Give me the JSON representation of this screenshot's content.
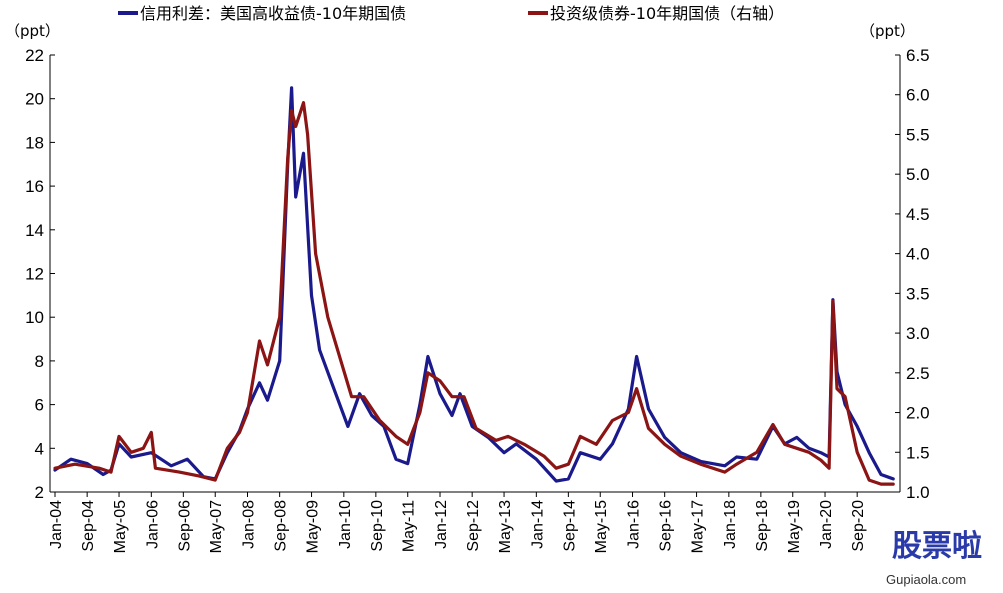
{
  "chart_data": {
    "type": "line",
    "legend_position": "top",
    "grid": false,
    "left_axis": {
      "unit": "（ppt）",
      "ylim": [
        2,
        22
      ],
      "ticks": [
        2,
        4,
        6,
        8,
        10,
        12,
        14,
        16,
        18,
        20,
        22
      ]
    },
    "right_axis": {
      "unit": "（ppt）",
      "ylim": [
        1.0,
        6.5
      ],
      "ticks": [
        "1.0",
        "1.5",
        "2.0",
        "2.5",
        "3.0",
        "3.5",
        "4.0",
        "4.5",
        "5.0",
        "5.5",
        "6.0",
        "6.5"
      ]
    },
    "x_ticks": [
      "Jan-04",
      "Sep-04",
      "May-05",
      "Jan-06",
      "Sep-06",
      "May-07",
      "Jan-08",
      "Sep-08",
      "May-09",
      "Jan-10",
      "Sep-10",
      "May-11",
      "Jan-12",
      "Sep-12",
      "May-13",
      "Jan-14",
      "Sep-14",
      "May-15",
      "Jan-16",
      "Sep-16",
      "May-17",
      "Jan-18",
      "Sep-18",
      "May-19",
      "Jan-20",
      "Sep-20"
    ],
    "series": [
      {
        "name": "信用利差：美国高收益债-10年期国债",
        "axis": "left",
        "color": "#1a1a8c",
        "points": [
          [
            "2004-01",
            3.0
          ],
          [
            "2004-05",
            3.5
          ],
          [
            "2004-09",
            3.3
          ],
          [
            "2005-01",
            2.8
          ],
          [
            "2005-03",
            3.0
          ],
          [
            "2005-05",
            4.2
          ],
          [
            "2005-08",
            3.6
          ],
          [
            "2006-01",
            3.8
          ],
          [
            "2006-06",
            3.2
          ],
          [
            "2006-10",
            3.5
          ],
          [
            "2007-02",
            2.7
          ],
          [
            "2007-05",
            2.6
          ],
          [
            "2007-08",
            3.8
          ],
          [
            "2007-11",
            4.8
          ],
          [
            "2008-01",
            5.8
          ],
          [
            "2008-04",
            7.0
          ],
          [
            "2008-06",
            6.2
          ],
          [
            "2008-09",
            8.0
          ],
          [
            "2008-11",
            17.0
          ],
          [
            "2008-12",
            20.5
          ],
          [
            "2009-01",
            15.5
          ],
          [
            "2009-03",
            17.5
          ],
          [
            "2009-05",
            11.0
          ],
          [
            "2009-07",
            8.5
          ],
          [
            "2009-10",
            7.0
          ],
          [
            "2010-02",
            5.0
          ],
          [
            "2010-05",
            6.5
          ],
          [
            "2010-08",
            5.5
          ],
          [
            "2010-11",
            5.0
          ],
          [
            "2011-02",
            3.5
          ],
          [
            "2011-05",
            3.3
          ],
          [
            "2011-08",
            6.0
          ],
          [
            "2011-10",
            8.2
          ],
          [
            "2012-01",
            6.5
          ],
          [
            "2012-04",
            5.5
          ],
          [
            "2012-06",
            6.5
          ],
          [
            "2012-09",
            5.0
          ],
          [
            "2013-01",
            4.5
          ],
          [
            "2013-05",
            3.8
          ],
          [
            "2013-08",
            4.2
          ],
          [
            "2014-01",
            3.5
          ],
          [
            "2014-06",
            2.5
          ],
          [
            "2014-09",
            2.6
          ],
          [
            "2014-12",
            3.8
          ],
          [
            "2015-05",
            3.5
          ],
          [
            "2015-08",
            4.2
          ],
          [
            "2015-12",
            5.8
          ],
          [
            "2016-02",
            8.2
          ],
          [
            "2016-05",
            5.8
          ],
          [
            "2016-09",
            4.5
          ],
          [
            "2017-01",
            3.8
          ],
          [
            "2017-06",
            3.4
          ],
          [
            "2017-12",
            3.2
          ],
          [
            "2018-03",
            3.6
          ],
          [
            "2018-08",
            3.5
          ],
          [
            "2018-12",
            5.0
          ],
          [
            "2019-03",
            4.2
          ],
          [
            "2019-06",
            4.5
          ],
          [
            "2019-09",
            4.0
          ],
          [
            "2019-12",
            3.8
          ],
          [
            "2020-02",
            3.6
          ],
          [
            "2020-03",
            10.8
          ],
          [
            "2020-04",
            7.5
          ],
          [
            "2020-06",
            6.0
          ],
          [
            "2020-09",
            5.0
          ],
          [
            "2020-12",
            3.8
          ],
          [
            "2021-03",
            2.8
          ],
          [
            "2021-06",
            2.6
          ]
        ]
      },
      {
        "name": "投资级债券-10年期国债（右轴）",
        "axis": "right",
        "color": "#8b1414",
        "points": [
          [
            "2004-01",
            1.3
          ],
          [
            "2004-06",
            1.35
          ],
          [
            "2004-12",
            1.3
          ],
          [
            "2005-03",
            1.25
          ],
          [
            "2005-05",
            1.7
          ],
          [
            "2005-08",
            1.5
          ],
          [
            "2005-11",
            1.55
          ],
          [
            "2006-01",
            1.75
          ],
          [
            "2006-02",
            1.3
          ],
          [
            "2006-08",
            1.25
          ],
          [
            "2007-01",
            1.2
          ],
          [
            "2007-05",
            1.15
          ],
          [
            "2007-08",
            1.55
          ],
          [
            "2007-11",
            1.75
          ],
          [
            "2008-01",
            2.0
          ],
          [
            "2008-04",
            2.9
          ],
          [
            "2008-06",
            2.6
          ],
          [
            "2008-09",
            3.2
          ],
          [
            "2008-11",
            5.2
          ],
          [
            "2008-12",
            5.8
          ],
          [
            "2009-01",
            5.6
          ],
          [
            "2009-03",
            5.9
          ],
          [
            "2009-04",
            5.5
          ],
          [
            "2009-06",
            4.0
          ],
          [
            "2009-09",
            3.2
          ],
          [
            "2009-12",
            2.7
          ],
          [
            "2010-03",
            2.2
          ],
          [
            "2010-06",
            2.2
          ],
          [
            "2010-10",
            1.9
          ],
          [
            "2011-02",
            1.7
          ],
          [
            "2011-05",
            1.6
          ],
          [
            "2011-08",
            2.0
          ],
          [
            "2011-10",
            2.5
          ],
          [
            "2012-01",
            2.4
          ],
          [
            "2012-04",
            2.2
          ],
          [
            "2012-07",
            2.2
          ],
          [
            "2012-10",
            1.8
          ],
          [
            "2013-03",
            1.65
          ],
          [
            "2013-06",
            1.7
          ],
          [
            "2013-10",
            1.6
          ],
          [
            "2014-03",
            1.45
          ],
          [
            "2014-06",
            1.3
          ],
          [
            "2014-09",
            1.35
          ],
          [
            "2014-12",
            1.7
          ],
          [
            "2015-04",
            1.6
          ],
          [
            "2015-08",
            1.9
          ],
          [
            "2015-12",
            2.0
          ],
          [
            "2016-02",
            2.3
          ],
          [
            "2016-05",
            1.8
          ],
          [
            "2016-09",
            1.6
          ],
          [
            "2017-01",
            1.45
          ],
          [
            "2017-06",
            1.35
          ],
          [
            "2017-12",
            1.25
          ],
          [
            "2018-03",
            1.35
          ],
          [
            "2018-08",
            1.5
          ],
          [
            "2018-12",
            1.85
          ],
          [
            "2019-03",
            1.6
          ],
          [
            "2019-06",
            1.55
          ],
          [
            "2019-09",
            1.5
          ],
          [
            "2019-12",
            1.4
          ],
          [
            "2020-02",
            1.3
          ],
          [
            "2020-03",
            3.4
          ],
          [
            "2020-04",
            2.3
          ],
          [
            "2020-06",
            2.2
          ],
          [
            "2020-09",
            1.5
          ],
          [
            "2020-12",
            1.15
          ],
          [
            "2021-03",
            1.1
          ],
          [
            "2021-06",
            1.1
          ]
        ]
      }
    ]
  },
  "watermark": {
    "text": "股票啦",
    "url": "Gupiaola.com",
    "colors": [
      "#2a3aa8",
      "#c0282d",
      "#d9302c"
    ]
  }
}
